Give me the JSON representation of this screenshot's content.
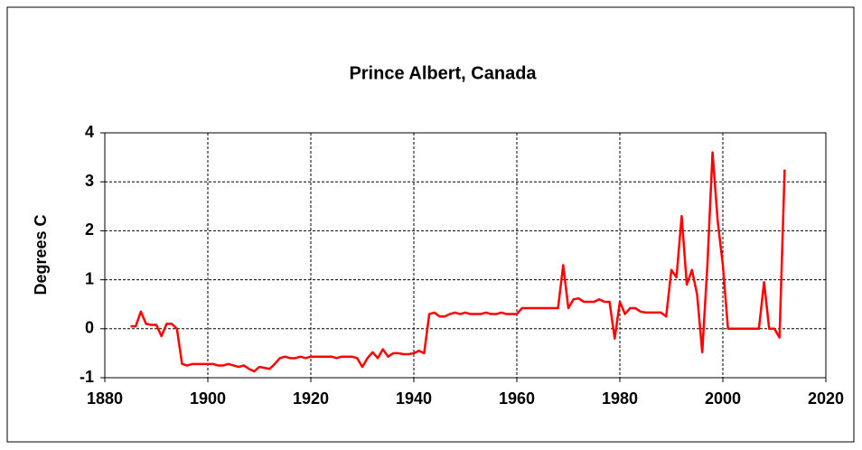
{
  "chart_data": {
    "type": "line",
    "title": "Prince Albert, Canada",
    "y_label": "Degrees C",
    "x": [
      1885,
      1886,
      1887,
      1888,
      1889,
      1890,
      1891,
      1892,
      1893,
      1894,
      1895,
      1896,
      1897,
      1898,
      1899,
      1900,
      1901,
      1902,
      1903,
      1904,
      1905,
      1906,
      1907,
      1908,
      1909,
      1910,
      1911,
      1912,
      1913,
      1914,
      1915,
      1916,
      1917,
      1918,
      1919,
      1920,
      1921,
      1922,
      1923,
      1924,
      1925,
      1926,
      1927,
      1928,
      1929,
      1930,
      1931,
      1932,
      1933,
      1934,
      1935,
      1936,
      1937,
      1938,
      1939,
      1940,
      1941,
      1942,
      1943,
      1944,
      1945,
      1946,
      1947,
      1948,
      1949,
      1950,
      1951,
      1952,
      1953,
      1954,
      1955,
      1956,
      1957,
      1958,
      1959,
      1960,
      1961,
      1962,
      1963,
      1964,
      1965,
      1966,
      1967,
      1968,
      1969,
      1970,
      1971,
      1972,
      1973,
      1974,
      1975,
      1976,
      1977,
      1978,
      1979,
      1980,
      1981,
      1982,
      1983,
      1984,
      1985,
      1986,
      1987,
      1988,
      1989,
      1990,
      1991,
      1992,
      1993,
      1994,
      1995,
      1996,
      1997,
      1998,
      1999,
      2000,
      2001,
      2002,
      2003,
      2004,
      2005,
      2006,
      2007,
      2008,
      2009,
      2010,
      2011,
      2012
    ],
    "series": [
      {
        "color": "#ff0000",
        "values": [
          0.05,
          0.05,
          0.35,
          0.1,
          0.08,
          0.08,
          -0.15,
          0.1,
          0.1,
          0.0,
          -0.72,
          -0.75,
          -0.72,
          -0.72,
          -0.72,
          -0.72,
          -0.72,
          -0.75,
          -0.75,
          -0.72,
          -0.75,
          -0.78,
          -0.75,
          -0.82,
          -0.87,
          -0.78,
          -0.8,
          -0.82,
          -0.72,
          -0.6,
          -0.57,
          -0.6,
          -0.6,
          -0.57,
          -0.6,
          -0.57,
          -0.57,
          -0.57,
          -0.57,
          -0.57,
          -0.6,
          -0.57,
          -0.57,
          -0.57,
          -0.6,
          -0.78,
          -0.6,
          -0.48,
          -0.6,
          -0.42,
          -0.57,
          -0.5,
          -0.5,
          -0.52,
          -0.52,
          -0.5,
          -0.45,
          -0.5,
          0.3,
          0.33,
          0.25,
          0.25,
          0.3,
          0.33,
          0.3,
          0.33,
          0.3,
          0.3,
          0.3,
          0.33,
          0.3,
          0.3,
          0.33,
          0.3,
          0.3,
          0.3,
          0.42,
          0.42,
          0.42,
          0.42,
          0.42,
          0.42,
          0.42,
          0.42,
          1.3,
          0.42,
          0.6,
          0.62,
          0.55,
          0.55,
          0.55,
          0.6,
          0.55,
          0.55,
          -0.2,
          0.55,
          0.3,
          0.42,
          0.42,
          0.35,
          0.33,
          0.33,
          0.33,
          0.33,
          0.25,
          1.2,
          1.05,
          2.3,
          0.9,
          1.2,
          0.7,
          -0.48,
          1.3,
          3.6,
          2.2,
          1.3,
          0,
          0,
          0,
          0,
          0,
          0,
          0,
          0.95,
          0,
          0,
          -0.18,
          3.25
        ]
      }
    ],
    "xlim": [
      1880,
      2020
    ],
    "xticks": [
      1880,
      1900,
      1920,
      1940,
      1960,
      1980,
      2000,
      2020
    ],
    "ylim": [
      -1,
      4
    ],
    "yticks": [
      -1,
      0,
      1,
      2,
      3,
      4
    ],
    "grid": true
  }
}
